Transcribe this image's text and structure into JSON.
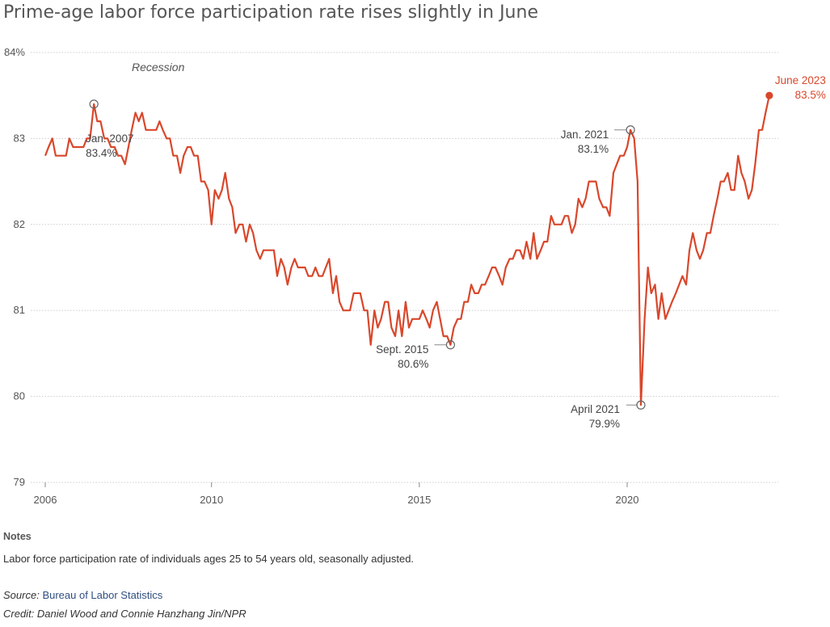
{
  "page": {
    "title": "Prime-age labor force participation rate rises slightly in June",
    "notes_heading": "Notes",
    "notes_text": "Labor force participation rate of individuals ages 25 to 54 years old, seasonally adjusted.",
    "source_label": "Source:",
    "source_link": "Bureau of Labor Statistics",
    "credit": "Credit: Daniel Wood and Connie Hanzhang Jin/NPR"
  },
  "colors": {
    "line": "#d9472b",
    "grid": "#cccccc",
    "text": "#333333",
    "marker": "#666666"
  },
  "chart_data": {
    "type": "line",
    "title": "Prime-age labor force participation rate rises slightly in June",
    "xlabel": "",
    "ylabel": "",
    "ylim": [
      79,
      84
    ],
    "yticks": [
      79,
      80,
      81,
      82,
      83,
      84
    ],
    "ytick_labels": [
      "79",
      "80",
      "81",
      "82",
      "83",
      "84%"
    ],
    "xticks": [
      2006,
      2010,
      2015,
      2020
    ],
    "xtick_labels": [
      "2006",
      "2010",
      "2015",
      "2020"
    ],
    "grid": "horizontal-dotted",
    "recession_label": "Recession",
    "series": [
      {
        "points": [
          [
            2006.0,
            82.8
          ],
          [
            2006.08,
            82.9
          ],
          [
            2006.17,
            83.0
          ],
          [
            2006.25,
            82.8
          ],
          [
            2006.33,
            82.8
          ],
          [
            2006.42,
            82.8
          ],
          [
            2006.5,
            82.8
          ],
          [
            2006.58,
            83.0
          ],
          [
            2006.67,
            82.9
          ],
          [
            2006.75,
            82.9
          ],
          [
            2006.83,
            82.9
          ],
          [
            2006.92,
            82.9
          ],
          [
            2007.0,
            83.0
          ],
          [
            2007.08,
            83.0
          ],
          [
            2007.17,
            83.4
          ],
          [
            2007.25,
            83.2
          ],
          [
            2007.33,
            83.2
          ],
          [
            2007.42,
            83.0
          ],
          [
            2007.5,
            83.0
          ],
          [
            2007.58,
            82.9
          ],
          [
            2007.67,
            82.9
          ],
          [
            2007.75,
            82.8
          ],
          [
            2007.83,
            82.8
          ],
          [
            2007.92,
            82.7
          ],
          [
            2008.0,
            82.9
          ],
          [
            2008.08,
            83.1
          ],
          [
            2008.17,
            83.3
          ],
          [
            2008.25,
            83.2
          ],
          [
            2008.33,
            83.3
          ],
          [
            2008.42,
            83.1
          ],
          [
            2008.5,
            83.1
          ],
          [
            2008.58,
            83.1
          ],
          [
            2008.67,
            83.1
          ],
          [
            2008.75,
            83.2
          ],
          [
            2008.83,
            83.1
          ],
          [
            2008.92,
            83.0
          ],
          [
            2009.0,
            83.0
          ],
          [
            2009.08,
            82.8
          ],
          [
            2009.17,
            82.8
          ],
          [
            2009.25,
            82.6
          ],
          [
            2009.33,
            82.8
          ],
          [
            2009.42,
            82.9
          ],
          [
            2009.5,
            82.9
          ],
          [
            2009.58,
            82.8
          ],
          [
            2009.67,
            82.8
          ],
          [
            2009.75,
            82.5
          ],
          [
            2009.83,
            82.5
          ],
          [
            2009.92,
            82.4
          ],
          [
            2010.0,
            82.0
          ],
          [
            2010.08,
            82.4
          ],
          [
            2010.17,
            82.3
          ],
          [
            2010.25,
            82.4
          ],
          [
            2010.33,
            82.6
          ],
          [
            2010.42,
            82.3
          ],
          [
            2010.5,
            82.2
          ],
          [
            2010.58,
            81.9
          ],
          [
            2010.67,
            82.0
          ],
          [
            2010.75,
            82.0
          ],
          [
            2010.83,
            81.8
          ],
          [
            2010.92,
            82.0
          ],
          [
            2011.0,
            81.9
          ],
          [
            2011.08,
            81.7
          ],
          [
            2011.17,
            81.6
          ],
          [
            2011.25,
            81.7
          ],
          [
            2011.33,
            81.7
          ],
          [
            2011.42,
            81.7
          ],
          [
            2011.5,
            81.7
          ],
          [
            2011.58,
            81.4
          ],
          [
            2011.67,
            81.6
          ],
          [
            2011.75,
            81.5
          ],
          [
            2011.83,
            81.3
          ],
          [
            2011.92,
            81.5
          ],
          [
            2012.0,
            81.6
          ],
          [
            2012.08,
            81.5
          ],
          [
            2012.17,
            81.5
          ],
          [
            2012.25,
            81.5
          ],
          [
            2012.33,
            81.4
          ],
          [
            2012.42,
            81.4
          ],
          [
            2012.5,
            81.5
          ],
          [
            2012.58,
            81.4
          ],
          [
            2012.67,
            81.4
          ],
          [
            2012.75,
            81.5
          ],
          [
            2012.83,
            81.6
          ],
          [
            2012.92,
            81.2
          ],
          [
            2013.0,
            81.4
          ],
          [
            2013.08,
            81.1
          ],
          [
            2013.17,
            81.0
          ],
          [
            2013.25,
            81.0
          ],
          [
            2013.33,
            81.0
          ],
          [
            2013.42,
            81.2
          ],
          [
            2013.5,
            81.2
          ],
          [
            2013.58,
            81.2
          ],
          [
            2013.67,
            81.0
          ],
          [
            2013.75,
            81.0
          ],
          [
            2013.83,
            80.6
          ],
          [
            2013.92,
            81.0
          ],
          [
            2014.0,
            80.8
          ],
          [
            2014.08,
            80.9
          ],
          [
            2014.17,
            81.1
          ],
          [
            2014.25,
            81.1
          ],
          [
            2014.33,
            80.8
          ],
          [
            2014.42,
            80.7
          ],
          [
            2014.5,
            81.0
          ],
          [
            2014.58,
            80.7
          ],
          [
            2014.67,
            81.1
          ],
          [
            2014.75,
            80.8
          ],
          [
            2014.83,
            80.9
          ],
          [
            2014.92,
            80.9
          ],
          [
            2015.0,
            80.9
          ],
          [
            2015.08,
            81.0
          ],
          [
            2015.17,
            80.9
          ],
          [
            2015.25,
            80.8
          ],
          [
            2015.33,
            81.0
          ],
          [
            2015.42,
            81.1
          ],
          [
            2015.5,
            80.9
          ],
          [
            2015.58,
            80.7
          ],
          [
            2015.67,
            80.7
          ],
          [
            2015.75,
            80.6
          ],
          [
            2015.83,
            80.8
          ],
          [
            2015.92,
            80.9
          ],
          [
            2016.0,
            80.9
          ],
          [
            2016.08,
            81.1
          ],
          [
            2016.17,
            81.1
          ],
          [
            2016.25,
            81.3
          ],
          [
            2016.33,
            81.2
          ],
          [
            2016.42,
            81.2
          ],
          [
            2016.5,
            81.3
          ],
          [
            2016.58,
            81.3
          ],
          [
            2016.67,
            81.4
          ],
          [
            2016.75,
            81.5
          ],
          [
            2016.83,
            81.5
          ],
          [
            2016.92,
            81.4
          ],
          [
            2017.0,
            81.3
          ],
          [
            2017.08,
            81.5
          ],
          [
            2017.17,
            81.6
          ],
          [
            2017.25,
            81.6
          ],
          [
            2017.33,
            81.7
          ],
          [
            2017.42,
            81.7
          ],
          [
            2017.5,
            81.6
          ],
          [
            2017.58,
            81.8
          ],
          [
            2017.67,
            81.6
          ],
          [
            2017.75,
            81.9
          ],
          [
            2017.83,
            81.6
          ],
          [
            2017.92,
            81.7
          ],
          [
            2018.0,
            81.8
          ],
          [
            2018.08,
            81.8
          ],
          [
            2018.17,
            82.1
          ],
          [
            2018.25,
            82.0
          ],
          [
            2018.33,
            82.0
          ],
          [
            2018.42,
            82.0
          ],
          [
            2018.5,
            82.1
          ],
          [
            2018.58,
            82.1
          ],
          [
            2018.67,
            81.9
          ],
          [
            2018.75,
            82.0
          ],
          [
            2018.83,
            82.3
          ],
          [
            2018.92,
            82.2
          ],
          [
            2019.0,
            82.3
          ],
          [
            2019.08,
            82.5
          ],
          [
            2019.17,
            82.5
          ],
          [
            2019.25,
            82.5
          ],
          [
            2019.33,
            82.3
          ],
          [
            2019.42,
            82.2
          ],
          [
            2019.5,
            82.2
          ],
          [
            2019.58,
            82.1
          ],
          [
            2019.67,
            82.6
          ],
          [
            2019.75,
            82.7
          ],
          [
            2019.83,
            82.8
          ],
          [
            2019.92,
            82.8
          ],
          [
            2020.0,
            82.9
          ],
          [
            2020.08,
            83.1
          ],
          [
            2020.17,
            83.0
          ],
          [
            2020.25,
            82.5
          ],
          [
            2020.33,
            79.9
          ],
          [
            2020.42,
            80.9
          ],
          [
            2020.5,
            81.5
          ],
          [
            2020.58,
            81.2
          ],
          [
            2020.67,
            81.3
          ],
          [
            2020.75,
            80.9
          ],
          [
            2020.83,
            81.2
          ],
          [
            2020.92,
            80.9
          ],
          [
            2021.0,
            81.0
          ],
          [
            2021.08,
            81.1
          ],
          [
            2021.17,
            81.2
          ],
          [
            2021.25,
            81.3
          ],
          [
            2021.33,
            81.4
          ],
          [
            2021.42,
            81.3
          ],
          [
            2021.5,
            81.7
          ],
          [
            2021.58,
            81.9
          ],
          [
            2021.67,
            81.7
          ],
          [
            2021.75,
            81.6
          ],
          [
            2021.83,
            81.7
          ],
          [
            2021.92,
            81.9
          ],
          [
            2022.0,
            81.9
          ],
          [
            2022.08,
            82.1
          ],
          [
            2022.17,
            82.3
          ],
          [
            2022.25,
            82.5
          ],
          [
            2022.33,
            82.5
          ],
          [
            2022.42,
            82.6
          ],
          [
            2022.5,
            82.4
          ],
          [
            2022.58,
            82.4
          ],
          [
            2022.67,
            82.8
          ],
          [
            2022.75,
            82.6
          ],
          [
            2022.83,
            82.5
          ],
          [
            2022.92,
            82.3
          ],
          [
            2023.0,
            82.4
          ],
          [
            2023.08,
            82.7
          ],
          [
            2023.17,
            83.1
          ],
          [
            2023.25,
            83.1
          ],
          [
            2023.33,
            83.3
          ],
          [
            2023.42,
            83.5
          ]
        ]
      }
    ],
    "annotations": [
      {
        "label": "Jan. 2007",
        "value_label": "83.4%",
        "x": 2007.17,
        "y": 83.4,
        "type": "open"
      },
      {
        "label": "Sept. 2015",
        "value_label": "80.6%",
        "x": 2015.75,
        "y": 80.6,
        "type": "open"
      },
      {
        "label": "Jan. 2021",
        "value_label": "83.1%",
        "x": 2020.08,
        "y": 83.1,
        "type": "open"
      },
      {
        "label": "April 2021",
        "value_label": "79.9%",
        "x": 2020.33,
        "y": 79.9,
        "type": "open"
      },
      {
        "label": "June 2023",
        "value_label": "83.5%",
        "x": 2023.42,
        "y": 83.5,
        "type": "filled"
      }
    ]
  }
}
